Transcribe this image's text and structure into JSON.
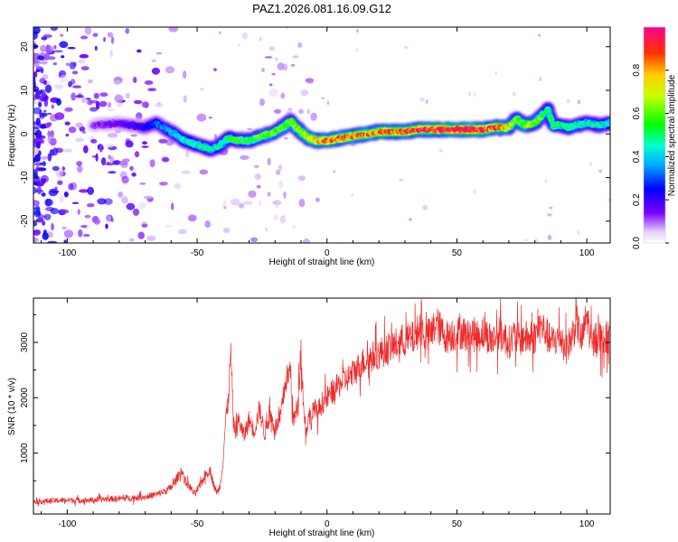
{
  "title": "PAZ1.2026.081.16.09.G12",
  "chart_data": [
    {
      "type": "heatmap",
      "xlabel": "Height of straight line (km)",
      "ylabel": "Frequency (Hz)",
      "xlim": [
        -113,
        109
      ],
      "ylim": [
        -25,
        24.5
      ],
      "xticks": [
        -100,
        -50,
        0,
        50,
        100
      ],
      "yticks": [
        -20,
        -10,
        0,
        10,
        20
      ],
      "xtick_labels": [
        "-100",
        "-50",
        "0",
        "50",
        "100"
      ],
      "ytick_labels": [
        "-20",
        "-10",
        "0",
        "10",
        "20"
      ],
      "colorbar": {
        "label": "Normalized spectral amplitude",
        "range": [
          0,
          1
        ],
        "ticks": [
          0.0,
          0.2,
          0.4,
          0.6,
          0.8
        ],
        "tick_labels": [
          "0.0",
          "0.2",
          "0.4",
          "0.6",
          "0.8"
        ],
        "colormap": "rainbow"
      },
      "ridge": {
        "x": [
          -90,
          -80,
          -70,
          -66,
          -60,
          -55,
          -50,
          -45,
          -42,
          -38,
          -34,
          -30,
          -25,
          -20,
          -16,
          -14,
          -12,
          -10,
          -7,
          -4,
          0,
          5,
          10,
          15,
          20,
          25,
          30,
          35,
          40,
          45,
          50,
          55,
          60,
          65,
          70,
          73,
          76,
          80,
          83,
          85,
          87,
          90,
          93,
          96,
          100,
          105,
          109
        ],
        "y": [
          2,
          2.5,
          1.5,
          2.5,
          0.5,
          -1.5,
          -2.5,
          -3.5,
          -3,
          -1,
          -1.5,
          -1.5,
          -0.5,
          0.5,
          2,
          3,
          1.5,
          0.5,
          -1,
          -1.5,
          -1.5,
          -1,
          -0.5,
          0,
          0.5,
          0.5,
          0.5,
          1,
          1,
          1,
          1,
          1,
          1,
          1.5,
          1.5,
          3.5,
          2,
          2.5,
          4.5,
          5.5,
          2,
          2,
          1.5,
          2,
          2.5,
          2,
          2.5
        ],
        "amplitude": [
          0.12,
          0.15,
          0.22,
          0.3,
          0.38,
          0.42,
          0.45,
          0.45,
          0.45,
          0.5,
          0.55,
          0.55,
          0.6,
          0.6,
          0.6,
          0.62,
          0.65,
          0.7,
          0.7,
          0.8,
          0.85,
          0.85,
          0.8,
          0.8,
          0.82,
          0.82,
          0.85,
          0.88,
          0.92,
          0.95,
          0.95,
          0.95,
          0.9,
          0.85,
          0.7,
          0.6,
          0.65,
          0.65,
          0.55,
          0.5,
          0.5,
          0.5,
          0.5,
          0.48,
          0.45,
          0.45,
          0.42
        ]
      }
    },
    {
      "type": "line",
      "xlabel": "Height of straight line (km)",
      "ylabel": "SNR (10 * v/v)",
      "xlim": [
        -113,
        109
      ],
      "ylim": [
        -100,
        3800
      ],
      "xticks": [
        -100,
        -50,
        0,
        50,
        100
      ],
      "yticks": [
        1000,
        2000,
        3000
      ],
      "xtick_labels": [
        "-100",
        "-50",
        "0",
        "50",
        "100"
      ],
      "ytick_labels": [
        "1000",
        "2000",
        "3000"
      ],
      "series": [
        {
          "color": "#ee2a2a",
          "x": [
            -113,
            -110,
            -105,
            -100,
            -95,
            -90,
            -85,
            -80,
            -75,
            -70,
            -65,
            -62,
            -60,
            -58,
            -56,
            -55,
            -53,
            -51,
            -49,
            -47,
            -45,
            -44,
            -43,
            -42,
            -41,
            -40,
            -39,
            -38,
            -37,
            -36,
            -35,
            -34,
            -32,
            -30,
            -28,
            -26,
            -24,
            -22,
            -20,
            -18,
            -16,
            -14,
            -13,
            -12,
            -11,
            -10,
            -9,
            -8,
            -7,
            -6,
            -5,
            -4,
            -2,
            0,
            2,
            4,
            6,
            8,
            10,
            12,
            14,
            16,
            18,
            20,
            22,
            24,
            26,
            28,
            30,
            32,
            34,
            36,
            38,
            40,
            42,
            44,
            46,
            48,
            50,
            52,
            54,
            56,
            58,
            60,
            62,
            64,
            66,
            68,
            70,
            72,
            74,
            76,
            78,
            80,
            82,
            84,
            86,
            88,
            90,
            92,
            94,
            96,
            98,
            100,
            102,
            104,
            106,
            108,
            109
          ],
          "y": [
            130,
            130,
            140,
            150,
            150,
            150,
            170,
            180,
            190,
            210,
            260,
            320,
            380,
            520,
            700,
            520,
            400,
            260,
            400,
            600,
            700,
            500,
            330,
            300,
            450,
            900,
            1600,
            1950,
            2850,
            1500,
            1400,
            1600,
            1300,
            1600,
            1400,
            1800,
            1350,
            1700,
            1450,
            1600,
            2300,
            2500,
            1600,
            1700,
            2100,
            2900,
            1800,
            1400,
            1700,
            1600,
            1850,
            1700,
            1900,
            2000,
            2100,
            2200,
            2300,
            2350,
            2450,
            2550,
            2650,
            2700,
            2750,
            2800,
            2850,
            2900,
            2950,
            3000,
            3050,
            3050,
            3100,
            3300,
            3100,
            3150,
            3350,
            3200,
            3100,
            3150,
            3150,
            3200,
            3100,
            3150,
            3100,
            3200,
            3100,
            3050,
            3150,
            3100,
            3000,
            3100,
            3050,
            3100,
            3050,
            3100,
            3300,
            3200,
            3000,
            3050,
            3100,
            2900,
            3050,
            3400,
            3000,
            3500,
            2900,
            3200,
            3000,
            3100,
            3050
          ]
        }
      ]
    }
  ]
}
